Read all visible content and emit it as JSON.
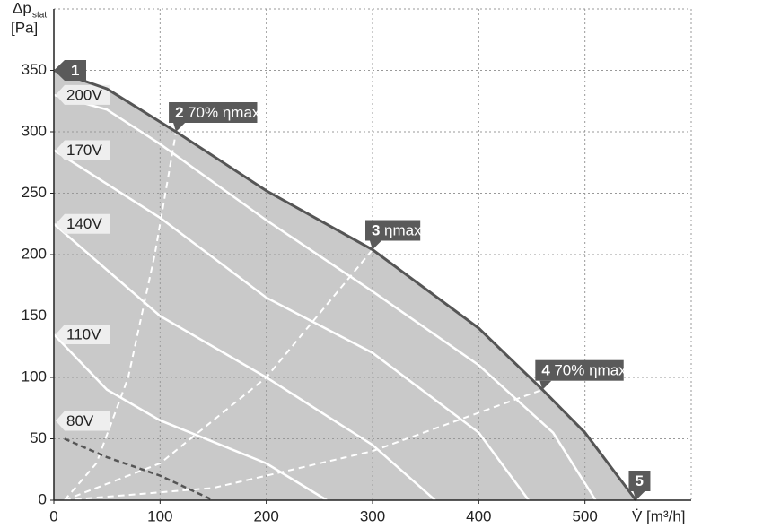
{
  "chart_data": {
    "type": "line",
    "y_label": "Δp",
    "y_label_sub": "stat",
    "y_label_unit": "[Pa]",
    "x_label": "V̇ [m³/h]",
    "xlim": [
      0,
      600
    ],
    "xticks": [
      0,
      100,
      200,
      300,
      400,
      500
    ],
    "ylim": [
      0,
      400
    ],
    "yticks": [
      0,
      50,
      100,
      150,
      200,
      250,
      300,
      350
    ],
    "grid": true,
    "envelope": {
      "x": [
        0,
        50,
        115,
        200,
        300,
        400,
        460,
        500,
        548
      ],
      "values": [
        350,
        335,
        300,
        252,
        204,
        140,
        90,
        55,
        0
      ],
      "color": "#555555",
      "fill": "#c9c9c9"
    },
    "series": [
      {
        "name": "200V",
        "color": "#ffffff",
        "dashed": false,
        "x": [
          0,
          50,
          100,
          200,
          300,
          400,
          470,
          510
        ],
        "values": [
          330,
          318,
          290,
          228,
          170,
          110,
          55,
          0
        ]
      },
      {
        "name": "170V",
        "color": "#ffffff",
        "dashed": false,
        "x": [
          0,
          100,
          200,
          300,
          400,
          447
        ],
        "values": [
          285,
          230,
          165,
          120,
          55,
          0
        ]
      },
      {
        "name": "140V",
        "color": "#ffffff",
        "dashed": false,
        "x": [
          0,
          100,
          200,
          300,
          359
        ],
        "values": [
          225,
          150,
          100,
          45,
          0
        ]
      },
      {
        "name": "110V",
        "color": "#ffffff",
        "dashed": false,
        "x": [
          0,
          50,
          100,
          200,
          257
        ],
        "values": [
          135,
          90,
          65,
          30,
          0
        ]
      },
      {
        "name": "80V",
        "color": "#555555",
        "dashed": true,
        "x": [
          10,
          50,
          100,
          150
        ],
        "values": [
          50,
          35,
          20,
          0
        ]
      }
    ],
    "system_curves": [
      {
        "color": "#ffffff",
        "x": [
          10,
          40,
          70,
          95,
          115
        ],
        "values": [
          0,
          30,
          100,
          200,
          300
        ]
      },
      {
        "color": "#ffffff",
        "x": [
          10,
          100,
          200,
          300
        ],
        "values": [
          0,
          30,
          100,
          204
        ]
      },
      {
        "color": "#ffffff",
        "x": [
          10,
          150,
          300,
          460
        ],
        "values": [
          0,
          10,
          40,
          90
        ]
      }
    ],
    "points": [
      {
        "number": "1",
        "x": 0,
        "y": 350
      },
      {
        "number": "2",
        "label": "70% ηmax",
        "x": 115,
        "y": 300
      },
      {
        "number": "3",
        "label": "ηmax",
        "x": 300,
        "y": 204
      },
      {
        "number": "4",
        "label": "70% ηmax",
        "x": 460,
        "y": 90
      },
      {
        "number": "5",
        "x": 548,
        "y": 0
      }
    ],
    "marker_color": "#5a5a5a"
  }
}
